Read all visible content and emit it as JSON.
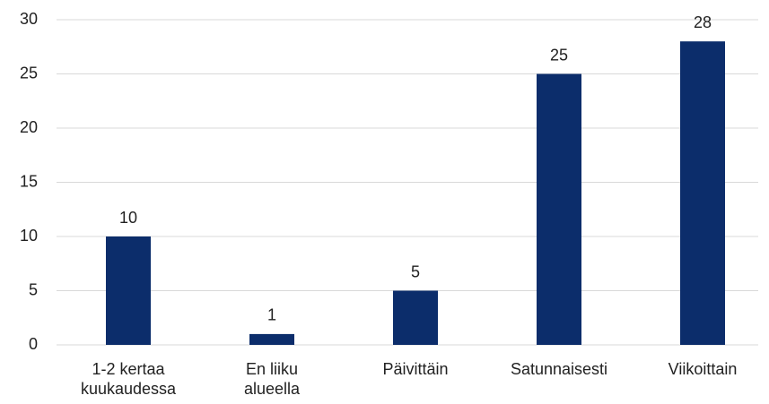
{
  "chart_data": {
    "type": "bar",
    "categories": [
      "1-2 kertaa kuukaudessa",
      "En liiku alueella",
      "Päivittäin",
      "Satunnaisesti",
      "Viikoittain"
    ],
    "values": [
      10,
      1,
      5,
      25,
      28
    ],
    "color": "#0c2d6b",
    "ylim": [
      0,
      30
    ],
    "yticks": [
      0,
      5,
      10,
      15,
      20,
      25,
      30
    ],
    "grid": true
  }
}
